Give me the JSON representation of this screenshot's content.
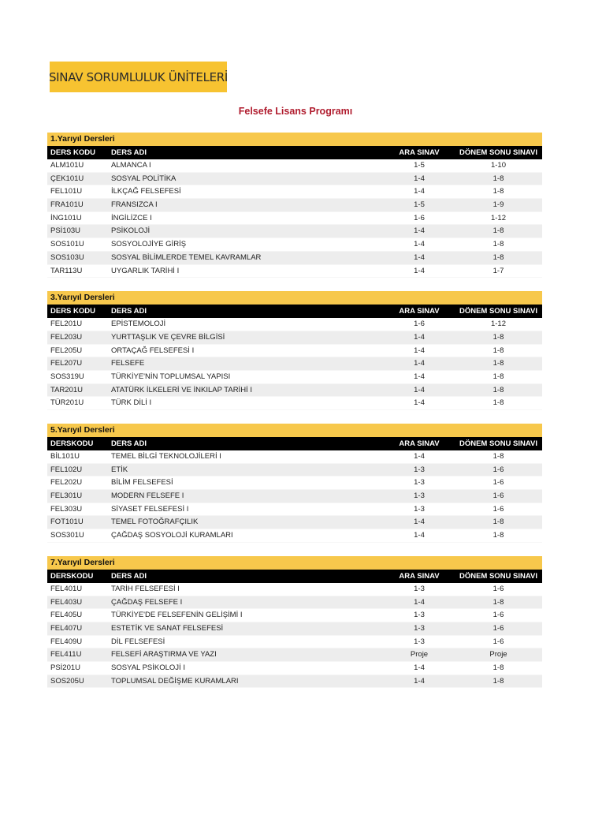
{
  "logo_text": "SINAV SORUMLULUK ÜNİTELERİ",
  "title": "Felsefe Lisans Programı",
  "colors": {
    "accent_yellow": "#f7c84c",
    "title_red": "#b01c2e",
    "header_black": "#000000"
  },
  "sections": [
    {
      "title": "1.Yarıyıl Dersleri",
      "headers": [
        "DERS KODU",
        "DERS ADI",
        "ARA SINAV",
        "DÖNEM SONU SINAVI"
      ],
      "rows": [
        [
          "ALM101U",
          "ALMANCA I",
          "1-5",
          "1-10"
        ],
        [
          "ÇEK101U",
          "SOSYAL POLİTİKA",
          "1-4",
          "1-8"
        ],
        [
          "FEL101U",
          "İLKÇAĞ FELSEFESİ",
          "1-4",
          "1-8"
        ],
        [
          "FRA101U",
          "FRANSIZCA I",
          "1-5",
          "1-9"
        ],
        [
          "İNG101U",
          "İNGİLİZCE I",
          "1-6",
          "1-12"
        ],
        [
          "PSİ103U",
          "PSİKOLOJİ",
          "1-4",
          "1-8"
        ],
        [
          "SOS101U",
          "SOSYOLOJİYE GİRİŞ",
          "1-4",
          "1-8"
        ],
        [
          "SOS103U",
          "SOSYAL BİLİMLERDE TEMEL KAVRAMLAR",
          "1-4",
          "1-8"
        ],
        [
          "TAR113U",
          "UYGARLIK TARİHİ I",
          "1-4",
          "1-7"
        ]
      ]
    },
    {
      "title": "3.Yarıyıl Dersleri",
      "headers": [
        "DERS KODU",
        "DERS ADI",
        "ARA SINAV",
        "DÖNEM SONU SINAVI"
      ],
      "rows": [
        [
          "FEL201U",
          "EPİSTEMOLOJİ",
          "1-6",
          "1-12"
        ],
        [
          "FEL203U",
          "YURTTAŞLIK VE ÇEVRE BİLGİSİ",
          "1-4",
          "1-8"
        ],
        [
          "FEL205U",
          "ORTAÇAĞ FELSEFESİ I",
          "1-4",
          "1-8"
        ],
        [
          "FEL207U",
          "FELSEFE",
          "1-4",
          "1-8"
        ],
        [
          "SOS319U",
          "TÜRKİYE'NİN TOPLUMSAL YAPISI",
          "1-4",
          "1-8"
        ],
        [
          "TAR201U",
          "ATATÜRK İLKELERİ VE İNKILAP TARİHİ I",
          "1-4",
          "1-8"
        ],
        [
          "TÜR201U",
          "TÜRK DİLİ I",
          "1-4",
          "1-8"
        ]
      ]
    },
    {
      "title": "5.Yarıyıl Dersleri",
      "headers": [
        "DERSKODU",
        "DERS ADI",
        "ARA SINAV",
        "DÖNEM SONU SINAVI"
      ],
      "rows": [
        [
          "BİL101U",
          "TEMEL BİLGİ TEKNOLOJİLERİ I",
          "1-4",
          "1-8"
        ],
        [
          "FEL102U",
          "ETİK",
          "1-3",
          "1-6"
        ],
        [
          "FEL202U",
          "BİLİM FELSEFESİ",
          "1-3",
          "1-6"
        ],
        [
          "FEL301U",
          "MODERN FELSEFE I",
          "1-3",
          "1-6"
        ],
        [
          "FEL303U",
          "SİYASET FELSEFESİ I",
          "1-3",
          "1-6"
        ],
        [
          "FOT101U",
          "TEMEL FOTOĞRAFÇILIK",
          "1-4",
          "1-8"
        ],
        [
          "SOS301U",
          "ÇAĞDAŞ SOSYOLOJİ KURAMLARI",
          "1-4",
          "1-8"
        ]
      ]
    },
    {
      "title": "7.Yarıyıl Dersleri",
      "headers": [
        "DERSKODU",
        "DERS ADI",
        "ARA SINAV",
        "DÖNEM SONU SINAVI"
      ],
      "rows": [
        [
          "FEL401U",
          "TARİH FELSEFESİ I",
          "1-3",
          "1-6"
        ],
        [
          "FEL403U",
          "ÇAĞDAŞ FELSEFE I",
          "1-4",
          "1-8"
        ],
        [
          "FEL405U",
          "TÜRKİYE'DE FELSEFENİN GELİŞİMİ I",
          "1-3",
          "1-6"
        ],
        [
          "FEL407U",
          "ESTETİK VE SANAT FELSEFESİ",
          "1-3",
          "1-6"
        ],
        [
          "FEL409U",
          "DİL FELSEFESİ",
          "1-3",
          "1-6"
        ],
        [
          "FEL411U",
          "FELSEFİ ARAŞTIRMA VE YAZI",
          "Proje",
          "Proje"
        ],
        [
          "PSİ201U",
          "SOSYAL PSİKOLOJİ I",
          "1-4",
          "1-8"
        ],
        [
          "SOS205U",
          "TOPLUMSAL DEĞİŞME KURAMLARI",
          "1-4",
          "1-8"
        ]
      ]
    }
  ]
}
